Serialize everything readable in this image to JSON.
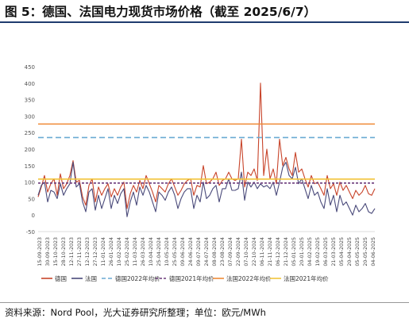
{
  "title": "图 5：德国、法国电力现货市场价格（截至 2025/6/7）",
  "source": "资料来源：Nord Pool，光大证券研究所整理；单位：欧元/MWh",
  "chart_data": {
    "type": "line",
    "ylim": [
      -50,
      450
    ],
    "yticks": [
      -50,
      0,
      50,
      100,
      150,
      200,
      250,
      300,
      350,
      400,
      450
    ],
    "xticks": [
      "15-09-2023",
      "30-09-2023",
      "15-10-2023",
      "28-10-2023",
      "12-11-2023",
      "27-11-2023",
      "12-12-2023",
      "27-12-2023",
      "11-01-2024",
      "26-01-2024",
      "10-02-2024",
      "25-02-2024",
      "11-03-2024",
      "26-03-2024",
      "10-04-2024",
      "25-04-2024",
      "10-05-2024",
      "25-05-2024",
      "09-06-2024",
      "24-06-2024",
      "09-07-2024",
      "24-07-2024",
      "08-08-2024",
      "23-08-2024",
      "07-09-2024",
      "22-09-2024",
      "07-10-2024",
      "22-10-2024",
      "06-11-2024",
      "21-11-2024",
      "06-12-2024",
      "21-12-2024",
      "05-01-2025",
      "20-01-2025",
      "04-02-2025",
      "19-02-2025",
      "06-03-2025",
      "21-03-2025",
      "05-04-2025",
      "20-04-2025",
      "05-05-2025",
      "20-05-2025",
      "04-06-2025"
    ],
    "grid": false,
    "legend_position": "bottom",
    "series": [
      {
        "name": "德国",
        "color": "#c8442a",
        "kind": "line",
        "values": [
          55,
          85,
          120,
          70,
          95,
          110,
          60,
          125,
          80,
          95,
          120,
          165,
          100,
          105,
          55,
          30,
          90,
          110,
          40,
          85,
          60,
          80,
          95,
          55,
          80,
          60,
          85,
          100,
          20,
          65,
          90,
          70,
          105,
          80,
          120,
          95,
          70,
          40,
          90,
          80,
          70,
          95,
          110,
          85,
          60,
          75,
          95,
          105,
          110,
          60,
          90,
          85,
          150,
          95,
          100,
          110,
          130,
          90,
          105,
          110,
          130,
          110,
          105,
          110,
          230,
          85,
          130,
          120,
          140,
          105,
          400,
          120,
          200,
          110,
          140,
          95,
          230,
          150,
          175,
          140,
          120,
          190,
          130,
          140,
          110,
          85,
          120,
          95,
          100,
          80,
          60,
          120,
          80,
          95,
          60,
          100,
          75,
          90,
          70,
          50,
          75,
          60,
          70,
          90,
          65,
          60,
          80
        ]
      },
      {
        "name": "法国",
        "color": "#4a4a7a",
        "kind": "line",
        "values": [
          60,
          90,
          100,
          40,
          75,
          70,
          50,
          95,
          60,
          80,
          95,
          160,
          85,
          95,
          40,
          10,
          70,
          80,
          15,
          60,
          20,
          50,
          80,
          20,
          60,
          35,
          65,
          80,
          -5,
          40,
          70,
          30,
          85,
          60,
          90,
          70,
          40,
          10,
          70,
          60,
          45,
          70,
          85,
          60,
          20,
          50,
          70,
          80,
          80,
          20,
          60,
          40,
          100,
          50,
          60,
          80,
          90,
          40,
          80,
          80,
          110,
          75,
          75,
          80,
          130,
          45,
          100,
          85,
          100,
          80,
          95,
          85,
          90,
          80,
          100,
          60,
          100,
          145,
          160,
          120,
          110,
          145,
          95,
          110,
          80,
          50,
          90,
          60,
          70,
          40,
          20,
          80,
          30,
          60,
          10,
          60,
          30,
          40,
          20,
          0,
          30,
          10,
          20,
          35,
          10,
          5,
          20
        ]
      },
      {
        "name": "德国2022年均价",
        "color": "#6aaad3",
        "kind": "hline-dashed",
        "value": 235
      },
      {
        "name": "德国2021年均价",
        "color": "#6b3a7a",
        "kind": "hline-dashed",
        "value": 97
      },
      {
        "name": "法国2022年均价",
        "color": "#ef8a36",
        "kind": "hline",
        "value": 276
      },
      {
        "name": "法国2021年均价",
        "color": "#f2c43a",
        "kind": "hline",
        "value": 109
      }
    ]
  }
}
